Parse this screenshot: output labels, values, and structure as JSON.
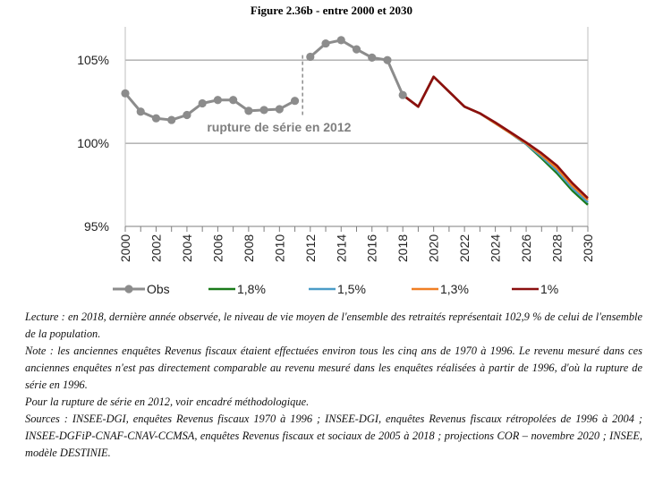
{
  "figure_title": "Figure 2.36b - entre 2000 et 2030",
  "chart_data": {
    "type": "line",
    "title": "Figure 2.36b - entre 2000 et 2030",
    "xlabel": "",
    "ylabel": "",
    "xlim": [
      2000,
      2030
    ],
    "ylim": [
      95,
      107
    ],
    "y_ticks": [
      95,
      100,
      105
    ],
    "y_tick_labels": [
      "95%",
      "100%",
      "105%"
    ],
    "x_ticks": [
      2000,
      2002,
      2004,
      2006,
      2008,
      2010,
      2012,
      2014,
      2016,
      2018,
      2020,
      2022,
      2024,
      2026,
      2028,
      2030
    ],
    "x_tick_labels": [
      "2000",
      "2002",
      "2004",
      "2006",
      "2008",
      "2010",
      "2012",
      "2014",
      "2016",
      "2018",
      "2020",
      "2022",
      "2024",
      "2026",
      "2028",
      "2030"
    ],
    "grid": "horizontal",
    "series_break": {
      "x": 2011.5,
      "label": "rupture de série en 2012"
    },
    "series": [
      {
        "name": "Obs",
        "color": "#8c8c8c",
        "markers": true,
        "segments": [
          {
            "x": [
              2000,
              2001,
              2002,
              2003,
              2004,
              2005,
              2006,
              2007,
              2008,
              2009,
              2010,
              2011
            ],
            "y": [
              103.0,
              101.9,
              101.5,
              101.4,
              101.7,
              102.4,
              102.6,
              102.6,
              101.95,
              102.0,
              102.05,
              102.55
            ]
          },
          {
            "x": [
              2012,
              2013,
              2014,
              2015,
              2016,
              2017,
              2018
            ],
            "y": [
              105.2,
              106.0,
              106.2,
              105.65,
              105.15,
              105.0,
              102.9
            ]
          }
        ]
      },
      {
        "name": "1,8%",
        "color": "#1a7a1a",
        "x": [
          2018,
          2019,
          2020,
          2021,
          2022,
          2023,
          2024,
          2025,
          2026,
          2027,
          2028,
          2029,
          2030
        ],
        "y": [
          102.9,
          102.2,
          104.0,
          103.1,
          102.2,
          101.8,
          101.2,
          100.6,
          99.95,
          99.1,
          98.2,
          97.15,
          96.3
        ]
      },
      {
        "name": "1,5%",
        "color": "#4b9cc7",
        "x": [
          2018,
          2019,
          2020,
          2021,
          2022,
          2023,
          2024,
          2025,
          2026,
          2027,
          2028,
          2029,
          2030
        ],
        "y": [
          102.9,
          102.2,
          104.0,
          103.1,
          102.2,
          101.8,
          101.2,
          100.6,
          99.95,
          99.2,
          98.35,
          97.3,
          96.45
        ]
      },
      {
        "name": "1,3%",
        "color": "#f07f24",
        "x": [
          2018,
          2019,
          2020,
          2021,
          2022,
          2023,
          2024,
          2025,
          2026,
          2027,
          2028,
          2029,
          2030
        ],
        "y": [
          102.9,
          102.2,
          104.0,
          103.1,
          102.2,
          101.8,
          101.2,
          100.6,
          100.0,
          99.3,
          98.5,
          97.45,
          96.6
        ]
      },
      {
        "name": "1%",
        "color": "#8b0f0f",
        "x": [
          2018,
          2019,
          2020,
          2021,
          2022,
          2023,
          2024,
          2025,
          2026,
          2027,
          2028,
          2029,
          2030
        ],
        "y": [
          102.9,
          102.2,
          104.0,
          103.1,
          102.2,
          101.8,
          101.25,
          100.65,
          100.05,
          99.4,
          98.65,
          97.6,
          96.7
        ]
      }
    ],
    "legend": {
      "position": "bottom"
    }
  },
  "notes": {
    "lecture": "Lecture : en 2018, dernière année observée, le niveau de vie moyen de l'ensemble des retraités représentait 102,9 % de celui de l'ensemble de la population.",
    "note": "Note : les anciennes enquêtes Revenus fiscaux étaient effectuées environ tous les cinq ans de 1970 à 1996. Le revenu mesuré dans ces anciennes enquêtes n'est pas directement comparable au revenu mesuré dans les enquêtes réalisées à partir de 1996, d'où la rupture de série en 1996.",
    "rupture": "Pour la rupture de série en 2012, voir encadré méthodologique.",
    "sources": "Sources : INSEE-DGI, enquêtes Revenus fiscaux 1970 à 1996 ; INSEE-DGI, enquêtes Revenus fiscaux rétropolées de 1996 à 2004 ; INSEE-DGFiP-CNAF-CNAV-CCMSA, enquêtes Revenus fiscaux et sociaux de 2005 à 2018 ; projections COR – novembre 2020 ; INSEE, modèle DESTINIE."
  }
}
